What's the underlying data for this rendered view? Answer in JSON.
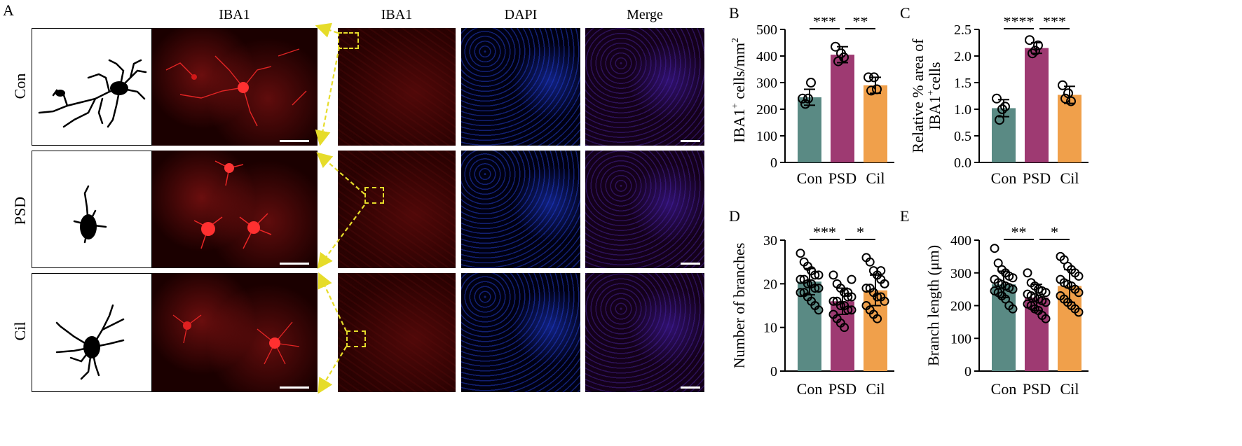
{
  "panel_labels": [
    "A",
    "B",
    "C",
    "D",
    "E"
  ],
  "panelA": {
    "col_titles": [
      "IBA1",
      "IBA1",
      "DAPI",
      "Merge"
    ],
    "row_labels": [
      "Con",
      "PSD",
      "Cil"
    ]
  },
  "colors": {
    "con": "#5a8a84",
    "psd": "#9e3a72",
    "cil": "#f0a04b",
    "arrow": "#e6dc2a"
  },
  "chart_data": [
    {
      "id": "B",
      "type": "bar",
      "categories": [
        "Con",
        "PSD",
        "Cil"
      ],
      "values": [
        245,
        405,
        290
      ],
      "errors": [
        30,
        30,
        30
      ],
      "points": [
        [
          240,
          220,
          240,
          300
        ],
        [
          435,
          380,
          410,
          395
        ],
        [
          320,
          270,
          320,
          275
        ]
      ],
      "ylabel_main": "IBA1",
      "ylabel_sup": "+",
      "ylabel_rest": " cells/mm",
      "ylabel_sup2": "2",
      "ylim": [
        0,
        500
      ],
      "yticks": [
        "0",
        "100",
        "200",
        "300",
        "400",
        "500"
      ],
      "ytick_values": [
        0,
        100,
        200,
        300,
        400,
        500
      ],
      "significance": [
        {
          "from": 0,
          "to": 1,
          "label": "***"
        },
        {
          "from": 1,
          "to": 2,
          "label": "**"
        }
      ]
    },
    {
      "id": "C",
      "type": "bar",
      "categories": [
        "Con",
        "PSD",
        "Cil"
      ],
      "values": [
        1.02,
        2.15,
        1.27
      ],
      "errors": [
        0.16,
        0.1,
        0.16
      ],
      "points": [
        [
          1.2,
          0.8,
          1.0,
          1.05
        ],
        [
          2.3,
          2.05,
          2.1,
          2.2
        ],
        [
          1.45,
          1.2,
          1.3,
          1.15
        ]
      ],
      "ylabel_line1": "Relative % area of",
      "ylabel_line2_main": "IBA1",
      "ylabel_line2_sup": "+",
      "ylabel_line2_rest": "cells",
      "ylim": [
        0,
        2.5
      ],
      "yticks": [
        "0.0",
        "0.5",
        "1.0",
        "1.5",
        "2.0",
        "2.5"
      ],
      "ytick_values": [
        0,
        0.5,
        1.0,
        1.5,
        2.0,
        2.5
      ],
      "significance": [
        {
          "from": 0,
          "to": 1,
          "label": "****"
        },
        {
          "from": 1,
          "to": 2,
          "label": "***"
        }
      ]
    },
    {
      "id": "D",
      "type": "bar",
      "categories": [
        "Con",
        "PSD",
        "Cil"
      ],
      "values": [
        20.5,
        16,
        18.5
      ],
      "errors": [
        3,
        3,
        3.5
      ],
      "points": [
        [
          27,
          25,
          24,
          23,
          22,
          22,
          21,
          21,
          20,
          20,
          19,
          19,
          18,
          18,
          17,
          16,
          15,
          14
        ],
        [
          22,
          20,
          19,
          18,
          17,
          17,
          16,
          16,
          15,
          15,
          14,
          14,
          13,
          12,
          11,
          10,
          18,
          21
        ],
        [
          26,
          25,
          23,
          22,
          21,
          20,
          19,
          19,
          18,
          17,
          17,
          16,
          15,
          14,
          13,
          12,
          23,
          20
        ]
      ],
      "ylabel": "Number of branches",
      "ylim": [
        0,
        30
      ],
      "yticks": [
        "0",
        "10",
        "20",
        "30"
      ],
      "ytick_values": [
        0,
        10,
        20,
        30
      ],
      "significance": [
        {
          "from": 0,
          "to": 1,
          "label": "***"
        },
        {
          "from": 1,
          "to": 2,
          "label": "*"
        }
      ]
    },
    {
      "id": "E",
      "type": "bar",
      "categories": [
        "Con",
        "PSD",
        "Cil"
      ],
      "values": [
        265,
        225,
        260
      ],
      "errors": [
        40,
        40,
        50
      ],
      "points": [
        [
          375,
          330,
          310,
          300,
          290,
          285,
          280,
          270,
          265,
          260,
          255,
          250,
          245,
          240,
          230,
          220,
          200,
          190
        ],
        [
          300,
          270,
          260,
          250,
          245,
          240,
          235,
          230,
          225,
          220,
          215,
          210,
          205,
          200,
          190,
          185,
          170,
          160
        ],
        [
          350,
          340,
          320,
          310,
          300,
          290,
          280,
          270,
          265,
          260,
          250,
          240,
          230,
          220,
          210,
          200,
          190,
          180
        ]
      ],
      "ylabel": "Branch length (μm)",
      "ylim": [
        0,
        400
      ],
      "yticks": [
        "0",
        "100",
        "200",
        "300",
        "400"
      ],
      "ytick_values": [
        0,
        100,
        200,
        300,
        400
      ],
      "significance": [
        {
          "from": 0,
          "to": 1,
          "label": "**"
        },
        {
          "from": 1,
          "to": 2,
          "label": "*"
        }
      ]
    }
  ]
}
